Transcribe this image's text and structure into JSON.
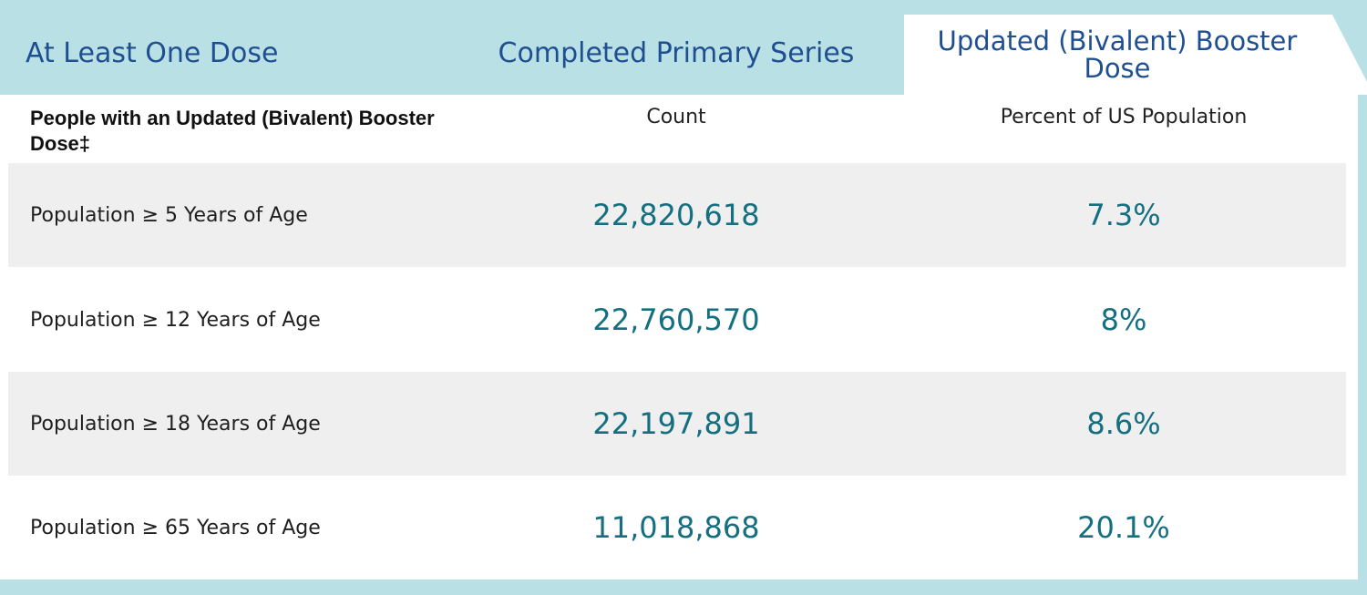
{
  "tabs": [
    {
      "label": "At Least One Dose"
    },
    {
      "label": "Completed Primary Series"
    },
    {
      "label": "Updated (Bivalent) Booster Dose"
    }
  ],
  "table": {
    "header": {
      "title": "People with an Updated (Bivalent) Booster Dose‡",
      "count_label": "Count",
      "percent_label": "Percent of US Population"
    },
    "rows": [
      {
        "label": "Population ≥ 5 Years of Age",
        "count": "22,820,618",
        "percent": "7.3%"
      },
      {
        "label": "Population ≥ 12 Years of Age",
        "count": "22,760,570",
        "percent": "8%"
      },
      {
        "label": "Population ≥ 18 Years of Age",
        "count": "22,197,891",
        "percent": "8.6%"
      },
      {
        "label": "Population ≥ 65 Years of Age",
        "count": "11,018,868",
        "percent": "20.1%"
      }
    ]
  },
  "colors": {
    "background": "#b9e0e4",
    "tab_text": "#1f4f91",
    "value_text": "#146f80",
    "row_shade": "#efefef"
  }
}
